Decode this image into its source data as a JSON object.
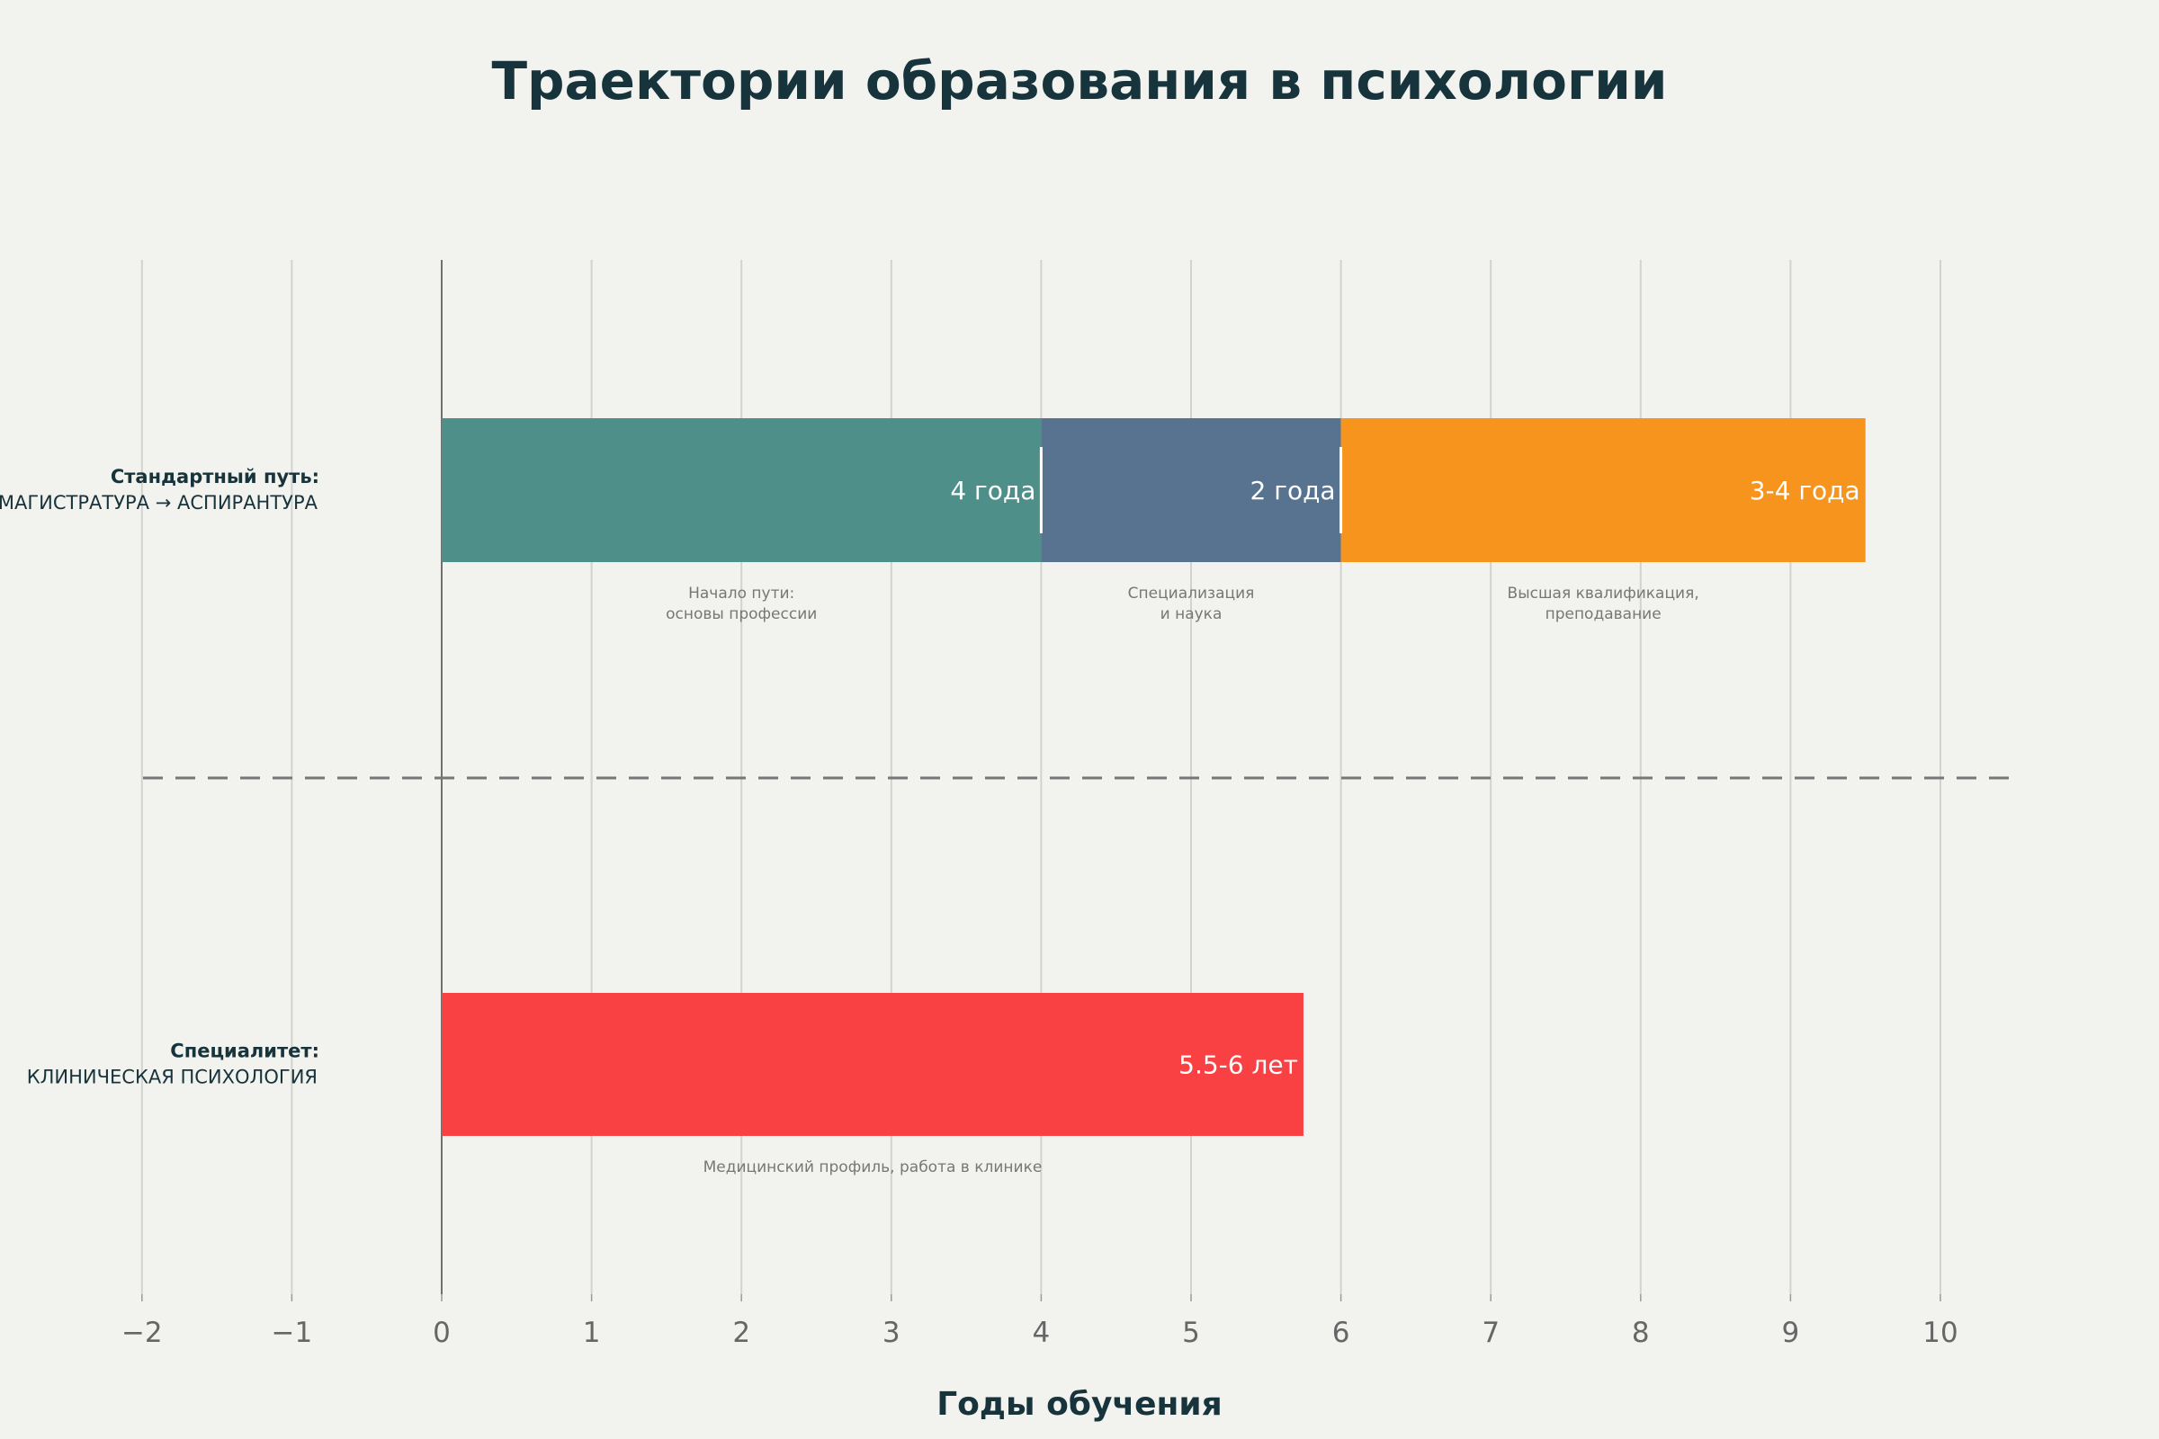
{
  "chart_data": {
    "type": "bar",
    "orientation": "horizontal-stacked",
    "title": "Траектории образования в психологии",
    "xlabel": "Годы обучения",
    "xlim": [
      -2,
      10.5
    ],
    "xticks": [
      -2,
      -1,
      0,
      1,
      2,
      3,
      4,
      5,
      6,
      7,
      8,
      9,
      10
    ],
    "grid": true,
    "background": "#F2F2EE",
    "rows": [
      {
        "label_bold": "Стандартный путь:",
        "label_sub": "МАГИСТРАТУРА → АСПИРАНТУРА",
        "segments": [
          {
            "start": 0,
            "end": 4,
            "label": "4 года",
            "note": [
              "Начало пути:",
              "основы профессии"
            ],
            "color": "#4E8F8A"
          },
          {
            "start": 4,
            "end": 6,
            "label": "2 года",
            "note": [
              "Специализация",
              "и наука"
            ],
            "color": "#57738F"
          },
          {
            "start": 6,
            "end": 9.5,
            "label": "3-4 года",
            "note": [
              "Высшая квалификация,",
              "преподавание"
            ],
            "color": "#F7941D"
          }
        ]
      },
      {
        "label_bold": "Специалитет:",
        "label_sub": "КЛИНИЧЕСКАЯ ПСИХОЛОГИЯ",
        "segments": [
          {
            "start": 0,
            "end": 5.75,
            "label": "5.5-6 лет",
            "note": [
              "Медицинский профиль, работа в клинике"
            ],
            "color": "#F94144"
          }
        ]
      }
    ]
  }
}
